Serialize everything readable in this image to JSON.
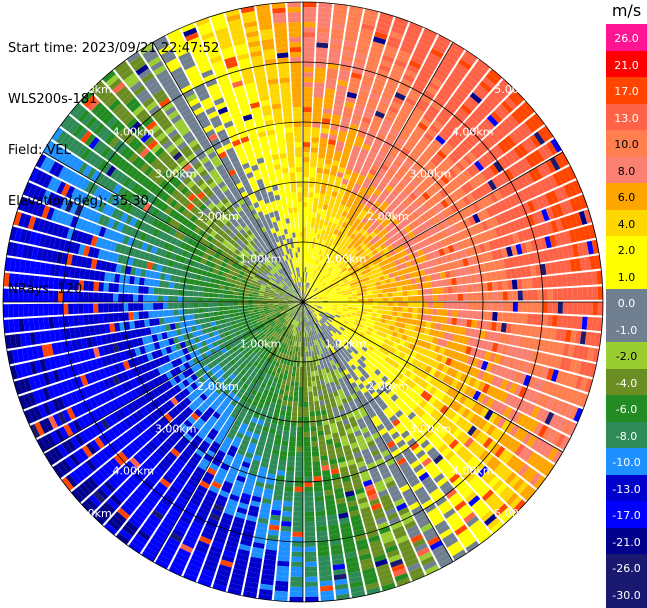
{
  "header": {
    "start_time": "Start time: 2023/09/21 22:47:52",
    "instrument": "WLS200s-181",
    "field": "Field: VEL",
    "elevation": "Elevation(deg): 35.30",
    "nrays": "NRays: 120"
  },
  "chart_data": {
    "type": "heatmap",
    "projection": "polar-ppi",
    "field": "VEL",
    "units": "m/s",
    "range_rings_km": [
      1.0,
      2.0,
      3.0,
      4.0,
      5.0
    ],
    "ring_labels": [
      "1.00km",
      "2.00km",
      "3.00km",
      "4.00km",
      "5.00km"
    ],
    "max_range_km": 5.0,
    "n_rays": 120,
    "spokes_deg": [
      0,
      30,
      60,
      90,
      120,
      150,
      180,
      210,
      240,
      270,
      300,
      330
    ],
    "colorbar": {
      "unit_label": "m/s",
      "ticks": [
        "26.0",
        "21.0",
        "17.0",
        "13.0",
        "10.0",
        "8.0",
        "6.0",
        "4.0",
        "2.0",
        "1.0",
        "0.0",
        "-1.0",
        "-2.0",
        "-4.0",
        "-6.0",
        "-8.0",
        "-10.0",
        "-13.0",
        "-17.0",
        "-21.0",
        "-26.0",
        "-30.0"
      ],
      "values": [
        26.0,
        21.0,
        17.0,
        13.0,
        10.0,
        8.0,
        6.0,
        4.0,
        2.0,
        1.0,
        0.0,
        -1.0,
        -2.0,
        -4.0,
        -6.0,
        -8.0,
        -10.0,
        -13.0,
        -17.0,
        -21.0,
        -26.0,
        -30.0
      ],
      "colors": [
        "#ff1493",
        "#ff0000",
        "#ff4500",
        "#ff6347",
        "#ff7f50",
        "#fa8072",
        "#ffa500",
        "#ffd700",
        "#ffff00",
        "#ffff00",
        "#708090",
        "#708090",
        "#9acd32",
        "#6b8e23",
        "#228b22",
        "#2e8b57",
        "#1e90ff",
        "#0000cd",
        "#0000ff",
        "#00008b",
        "#191970",
        "#191970"
      ]
    }
  }
}
